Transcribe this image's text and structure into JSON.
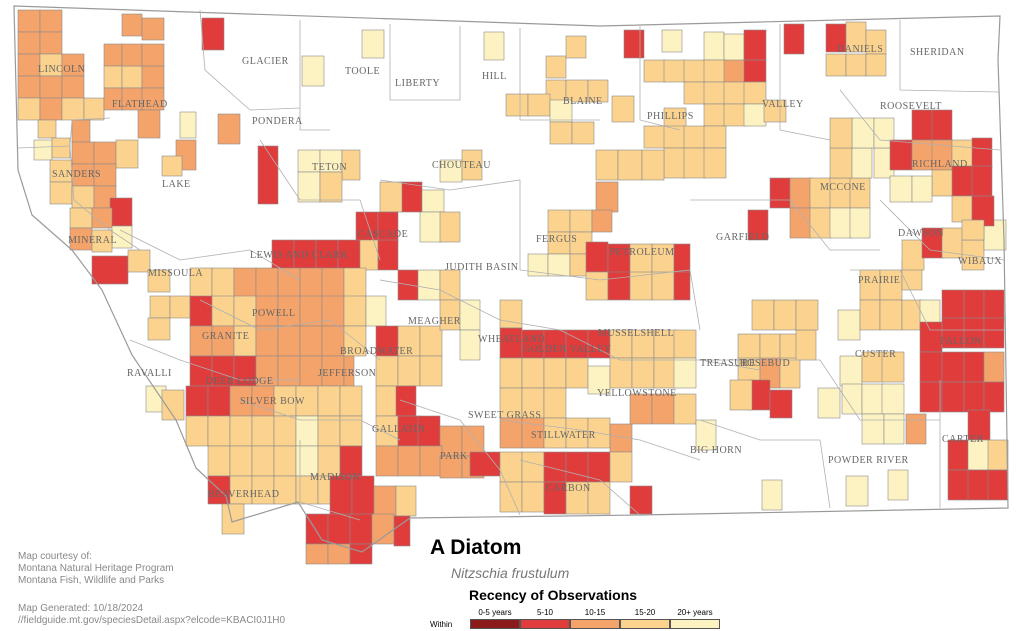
{
  "title": "A Diatom",
  "scientific_name": "Nitzschia frustulum",
  "legend": {
    "title": "Recency of Observations",
    "within_label": "Within",
    "classes": [
      {
        "label": "0-5 years",
        "color": "#8b1a1a"
      },
      {
        "label": "5-10",
        "color": "#e03c3c"
      },
      {
        "label": "10-15",
        "color": "#f4a36a"
      },
      {
        "label": "15-20",
        "color": "#fbd38f"
      },
      {
        "label": "20+ years",
        "color": "#fdf3c2"
      }
    ]
  },
  "credits": {
    "line1": "Map courtesy of:",
    "line2": "Montana Natural Heritage Program",
    "line3": "Montana Fish, Wildlife and Parks",
    "generated": "Map Generated: 10/18/2024",
    "url": "//fieldguide.mt.gov/speciesDetail.aspx?elcode=KBACI0J1H0"
  },
  "counties": [
    "LINCOLN",
    "FLATHEAD",
    "GLACIER",
    "TOOLE",
    "LIBERTY",
    "HILL",
    "BLAINE",
    "PHILLIPS",
    "VALLEY",
    "DANIELS",
    "SHERIDAN",
    "ROOSEVELT",
    "PONDERA",
    "TETON",
    "LAKE",
    "SANDERS",
    "CHOUTEAU",
    "RICHLAND",
    "MCCONE",
    "GARFIELD",
    "MINERAL",
    "CASCADE",
    "LEWIS AND CLARK",
    "JUDITH BASIN",
    "FERGUS",
    "PETROLEUM",
    "DAWSON",
    "WIBAUX",
    "MISSOULA",
    "PRAIRIE",
    "POWELL",
    "MEAGHER",
    "MUSSELSHELL",
    "FALLON",
    "GRANITE",
    "WHEATLAND",
    "GOLDEN VALLEY",
    "BROADWATER",
    "CUSTER",
    "DEER LODGE",
    "JEFFERSON",
    "RAVALLI",
    "SILVER BOW",
    "ROSEBUD",
    "TREASURE",
    "YELLOWSTONE",
    "SWEET GRASS",
    "STILLWATER",
    "GALLATIN",
    "PARK",
    "BIG HORN",
    "CARTER",
    "POWDER RIVER",
    "MADISON",
    "BEAVERHEAD",
    "CARBON"
  ]
}
